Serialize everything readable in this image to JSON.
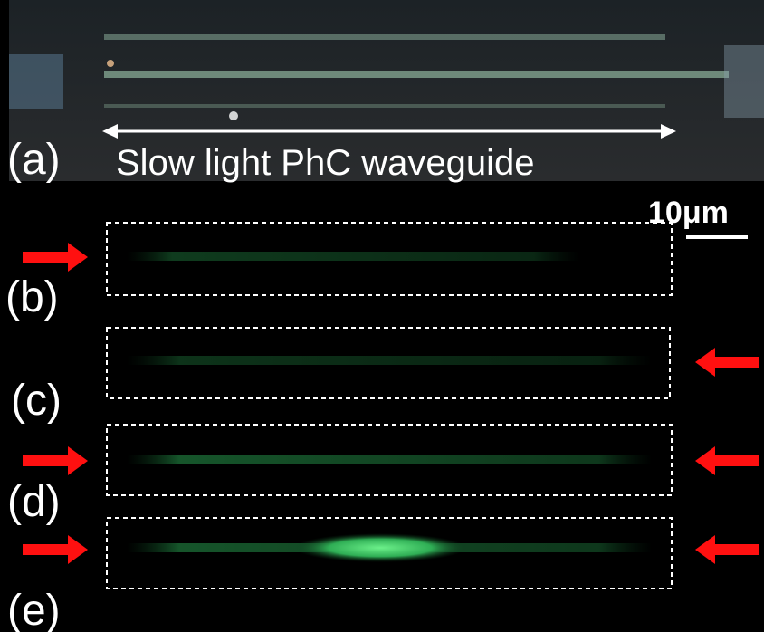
{
  "panels": {
    "a": {
      "label": "(a)",
      "caption": "Slow light PhC waveguide"
    },
    "b": {
      "label": "(b)"
    },
    "c": {
      "label": "(c)"
    },
    "d": {
      "label": "(d)"
    },
    "e": {
      "label": "(e)"
    }
  },
  "scale_bar": "10μm"
}
